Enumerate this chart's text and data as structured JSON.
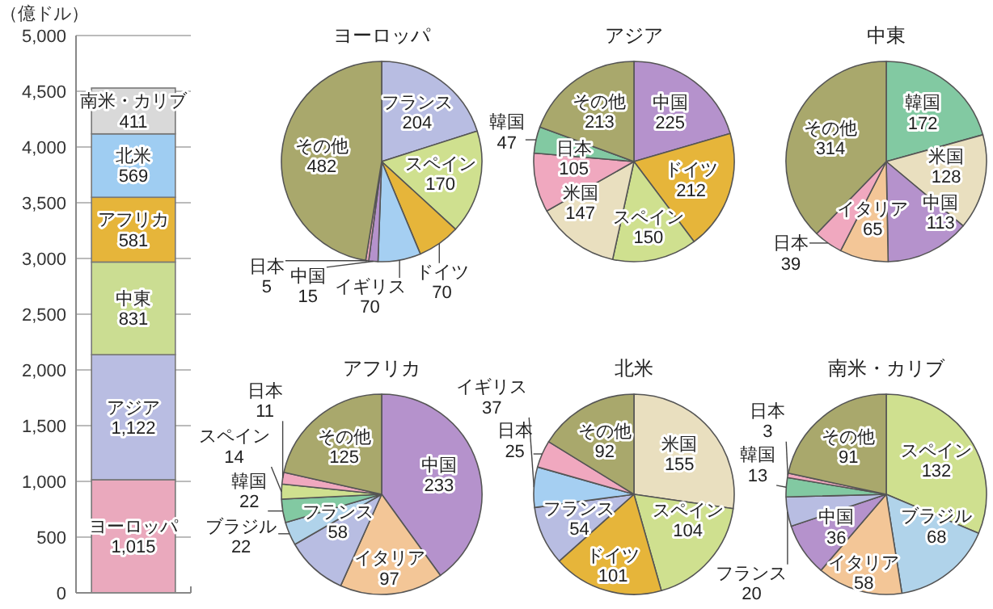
{
  "chart_data": [
    {
      "type": "bar",
      "stacked": true,
      "ylabel": "（億ドル）",
      "categories": [
        null
      ],
      "ylim": [
        0,
        5000
      ],
      "grid": "y",
      "data_labels": true,
      "yticks": [
        0,
        500,
        {
          "value": 1000,
          "label": "1,000"
        },
        {
          "value": 1500,
          "label": "1,500"
        },
        {
          "value": 2000,
          "label": "2,000"
        },
        {
          "value": 2500,
          "label": "2,500"
        },
        {
          "value": 3000,
          "label": "3,000"
        },
        {
          "value": 3500,
          "label": "3,500"
        },
        {
          "value": 4000,
          "label": "4,000"
        },
        {
          "value": 4500,
          "label": "4,500"
        },
        {
          "value": 5000,
          "label": "5,000"
        }
      ],
      "series": [
        {
          "name": "ヨーロッパ",
          "color": "#eaa9bd",
          "values": [
            1015
          ],
          "value_labels": [
            "1,015"
          ]
        },
        {
          "name": "アジア",
          "color": "#b9bde2",
          "values": [
            1122
          ],
          "value_labels": [
            "1,122"
          ]
        },
        {
          "name": "中東",
          "color": "#cbdd92",
          "values": [
            831
          ],
          "value_labels": [
            "831"
          ]
        },
        {
          "name": "アフリカ",
          "color": "#e6b53a",
          "values": [
            581
          ],
          "value_labels": [
            "581"
          ]
        },
        {
          "name": "北米",
          "color": "#9fcdf2",
          "values": [
            569
          ],
          "value_labels": [
            "569"
          ]
        },
        {
          "name": "南米・カリブ",
          "color": "#d9d9d9",
          "values": [
            411
          ],
          "value_labels": [
            "411"
          ]
        }
      ]
    },
    {
      "type": "pie",
      "title": "ヨーロッパ",
      "data_labels": true,
      "categories": [
        "フランス",
        "スペイン",
        "ドイツ",
        "イギリス",
        "中国",
        "日本",
        "その他"
      ],
      "values": [
        204,
        170,
        70,
        70,
        15,
        5,
        482
      ],
      "colors": [
        "#b8bde2",
        "#cfe08f",
        "#e6b53a",
        "#a5cff2",
        "#b592cc",
        "#f0a8bf",
        "#a9a86c"
      ]
    },
    {
      "type": "pie",
      "title": "アジア",
      "data_labels": true,
      "categories": [
        "中国",
        "ドイツ",
        "スペイン",
        "米国",
        "日本",
        "韓国",
        "その他"
      ],
      "values": [
        225,
        212,
        150,
        147,
        105,
        47,
        213
      ],
      "colors": [
        "#b592cc",
        "#e6b53a",
        "#cfe08f",
        "#e9dfbf",
        "#f0a8bf",
        "#82c9a2",
        "#a9a86c"
      ]
    },
    {
      "type": "pie",
      "title": "中東",
      "data_labels": true,
      "categories": [
        "韓国",
        "米国",
        "中国",
        "イタリア",
        "日本",
        "その他"
      ],
      "values": [
        172,
        128,
        113,
        65,
        39,
        314
      ],
      "colors": [
        "#82c9a2",
        "#e9dfbf",
        "#b592cc",
        "#f3c697",
        "#f0a8bf",
        "#a9a86c"
      ]
    },
    {
      "type": "pie",
      "title": "アフリカ",
      "data_labels": true,
      "categories": [
        "中国",
        "イタリア",
        "フランス",
        "ブラジル",
        "韓国",
        "スペイン",
        "日本",
        "その他"
      ],
      "values": [
        233,
        97,
        58,
        22,
        22,
        14,
        11,
        125
      ],
      "colors": [
        "#b592cc",
        "#f3c697",
        "#b8bde2",
        "#b0d3ea",
        "#82c9a2",
        "#cfe08f",
        "#f0a8bf",
        "#a9a86c"
      ]
    },
    {
      "type": "pie",
      "title": "北米",
      "data_labels": true,
      "categories": [
        "米国",
        "スペイン",
        "ドイツ",
        "フランス",
        "イギリス",
        "日本",
        "その他"
      ],
      "values": [
        155,
        104,
        101,
        54,
        37,
        25,
        92
      ],
      "colors": [
        "#e9dfbf",
        "#cfe08f",
        "#e6b53a",
        "#b8bde2",
        "#a5cff2",
        "#f0a8bf",
        "#a9a86c"
      ]
    },
    {
      "type": "pie",
      "title": "南米・カリブ",
      "data_labels": true,
      "categories": [
        "スペイン",
        "ブラジル",
        "イタリア",
        "中国",
        "フランス",
        "韓国",
        "日本",
        "その他"
      ],
      "values": [
        132,
        68,
        58,
        36,
        20,
        13,
        3,
        91
      ],
      "colors": [
        "#cfe08f",
        "#b0d3ea",
        "#f3c697",
        "#b592cc",
        "#b8bde2",
        "#82c9a2",
        "#f0a8bf",
        "#a9a86c"
      ]
    }
  ]
}
